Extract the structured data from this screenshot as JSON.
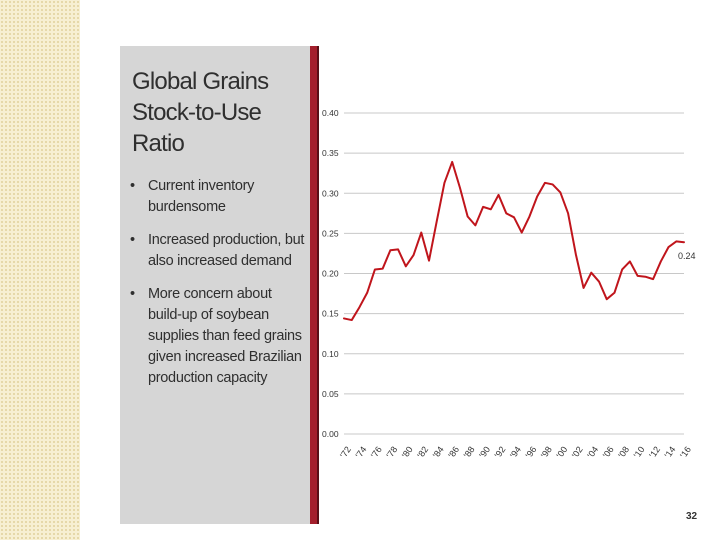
{
  "slide": {
    "title_line1": "Global Grains",
    "title_line2": "Stock-to-Use Ratio",
    "bullets": [
      "Current inventory burdensome",
      "Increased production, but also increased demand",
      "More concern about build-up of soybean supplies than feed grains given increased Brazilian production capacity"
    ],
    "bullet_symbol": "•",
    "page_number": "32"
  },
  "colors": {
    "line": "#c0151c",
    "panel": "#d6d6d6",
    "accent_bar": "#a31f2d"
  },
  "chart_data": {
    "type": "line",
    "title": "",
    "xlabel": "",
    "ylabel": "",
    "ylim": [
      0,
      0.4
    ],
    "y_ticks": [
      "0.00",
      "0.05",
      "0.10",
      "0.15",
      "0.20",
      "0.25",
      "0.30",
      "0.35",
      "0.40"
    ],
    "grid": true,
    "x_tick_labels": [
      "'72",
      "'74",
      "'76",
      "'78",
      "'80",
      "'82",
      "'84",
      "'86",
      "'88",
      "'90",
      "'92",
      "'94",
      "'96",
      "'98",
      "'00",
      "'02",
      "'04",
      "'06",
      "'08",
      "'10",
      "'12",
      "'14",
      "'16"
    ],
    "series": [
      {
        "name": "Stock-to-Use Ratio",
        "x": [
          1972,
          1973,
          1974,
          1975,
          1976,
          1977,
          1978,
          1979,
          1980,
          1981,
          1982,
          1983,
          1984,
          1985,
          1986,
          1987,
          1988,
          1989,
          1990,
          1991,
          1992,
          1993,
          1994,
          1995,
          1996,
          1997,
          1998,
          1999,
          2000,
          2001,
          2002,
          2003,
          2004,
          2005,
          2006,
          2007,
          2008,
          2009,
          2010,
          2011,
          2012,
          2013,
          2014,
          2015,
          2016
        ],
        "values": [
          0.144,
          0.142,
          0.158,
          0.176,
          0.205,
          0.206,
          0.229,
          0.23,
          0.209,
          0.223,
          0.251,
          0.216,
          0.265,
          0.313,
          0.339,
          0.307,
          0.271,
          0.26,
          0.283,
          0.28,
          0.298,
          0.275,
          0.27,
          0.251,
          0.271,
          0.296,
          0.313,
          0.311,
          0.301,
          0.275,
          0.224,
          0.182,
          0.201,
          0.19,
          0.168,
          0.176,
          0.205,
          0.215,
          0.197,
          0.196,
          0.193,
          0.215,
          0.233,
          0.24,
          0.239
        ]
      }
    ],
    "end_label": "0.24"
  }
}
